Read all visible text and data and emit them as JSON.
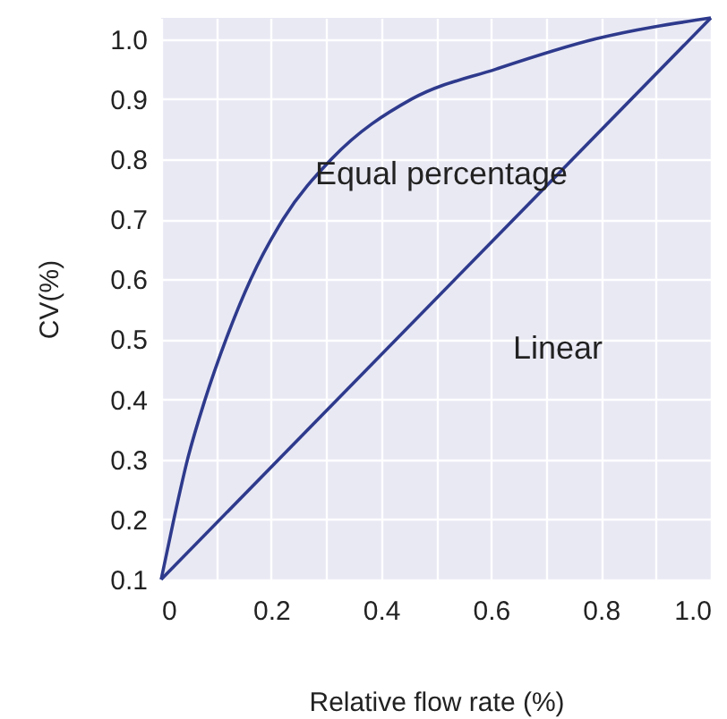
{
  "chart_data": {
    "type": "line",
    "xlabel": "Relative flow rate (%)",
    "ylabel": "CV(%)",
    "xlim": [
      0,
      1
    ],
    "ylim": [
      0.1,
      1.035
    ],
    "xticks": [
      0,
      {
        "value": 0.1,
        "label": null
      },
      0.2,
      {
        "value": 0.3,
        "label": null
      },
      0.4,
      {
        "value": 0.5,
        "label": null
      },
      0.6,
      {
        "value": 0.7,
        "label": null
      },
      0.8,
      {
        "value": 0.9,
        "label": null
      },
      {
        "value": 1,
        "label": "1.0"
      }
    ],
    "yticks": [
      0.1,
      0.2,
      0.3,
      0.4,
      0.5,
      0.6,
      0.7,
      0.8,
      0.9,
      {
        "value": 1,
        "label": "1.0"
      }
    ],
    "grid": true,
    "series": [
      {
        "name": "Equal percentage",
        "color": "#2e3a8c",
        "x": [
          0,
          0.023,
          0.048,
          0.08,
          0.118,
          0.163,
          0.222,
          0.31,
          0.456,
          0.61,
          0.79,
          1
        ],
        "values": [
          0.1,
          0.2,
          0.3,
          0.4,
          0.5,
          0.6,
          0.7,
          0.8,
          0.9,
          0.95,
          1.0,
          1.035
        ]
      },
      {
        "name": "Linear",
        "color": "#2e3a8c",
        "x": [
          0,
          1
        ],
        "values": [
          0.1,
          1.035
        ]
      }
    ]
  }
}
